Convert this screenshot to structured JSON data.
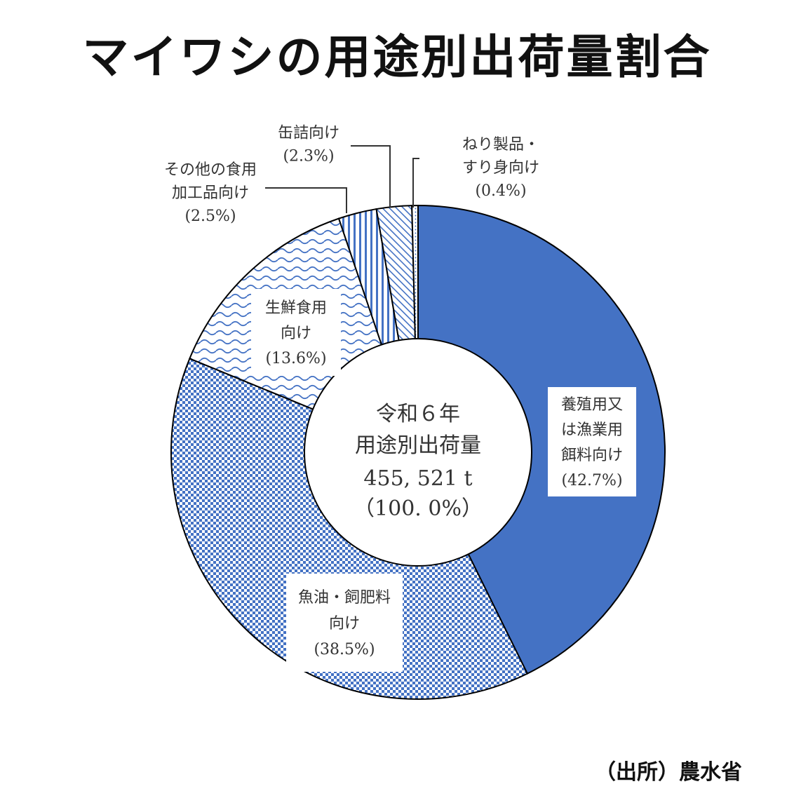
{
  "title": "マイワシの用途別出荷量割合",
  "source": "（出所）農水省",
  "chart_data": {
    "type": "pie",
    "center_text": [
      "令和６年",
      "用途別出荷量",
      "455, 521 t",
      "（100. 0%）"
    ],
    "colors": {
      "primary": "#4472c4",
      "outline": "#000000",
      "background": "#ffffff"
    },
    "slices": [
      {
        "label_lines": [
          "養殖用又",
          "は漁業用",
          "餌料向け",
          "(42.7%)"
        ],
        "value": 42.7,
        "fill": "solid"
      },
      {
        "label_lines": [
          "魚油・飼肥料",
          "向け",
          "(38.5%)"
        ],
        "value": 38.5,
        "fill": "checker"
      },
      {
        "label_lines": [
          "生鮮食用",
          "向け",
          "(13.6%)"
        ],
        "value": 13.6,
        "fill": "wave"
      },
      {
        "label_lines": [
          "その他の食用",
          "加工品向け",
          "(2.5%)"
        ],
        "value": 2.5,
        "fill": "vertical-stripes"
      },
      {
        "label_lines": [
          "缶詰向け",
          "(2.3%)"
        ],
        "value": 2.3,
        "fill": "diagonal-stripes"
      },
      {
        "label_lines": [
          "ねり製品・",
          "すり身向け",
          "(0.4%)"
        ],
        "value": 0.4,
        "fill": "dots"
      }
    ]
  }
}
